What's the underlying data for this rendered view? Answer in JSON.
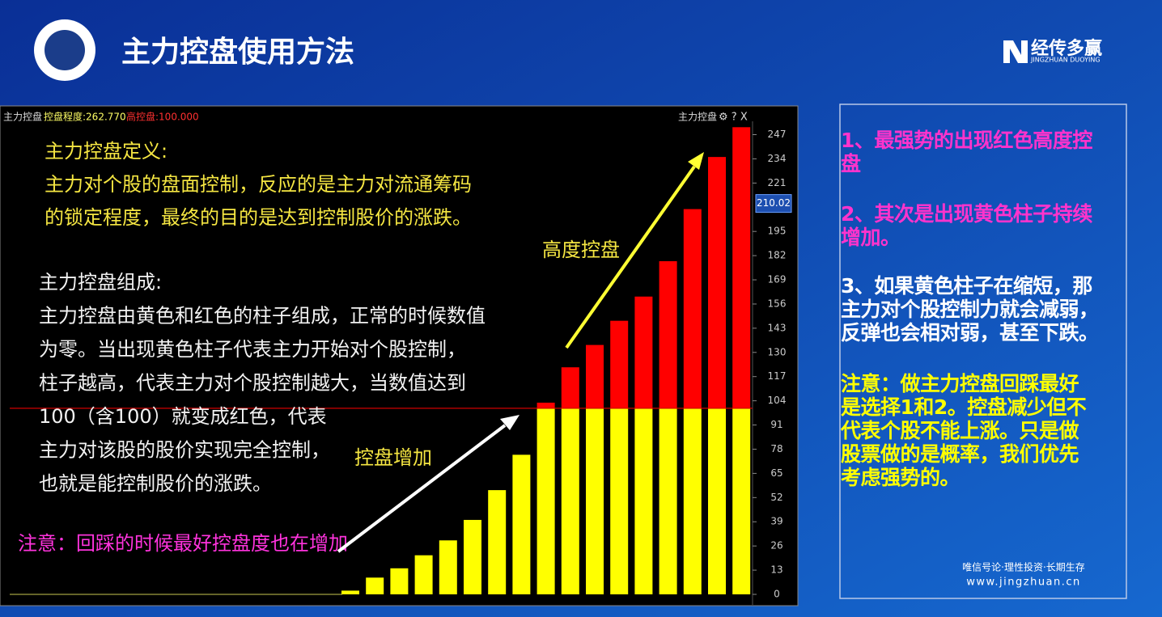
{
  "header": {
    "title": "主力控盘使用方法",
    "logo": "经传多赢",
    "logo_sub": "JINGZHUAN DUOYING"
  },
  "chart_data": {
    "type": "bar",
    "stacked": true,
    "panel_title": "主力控盘",
    "indicator_label": "控盘程度:262.770",
    "threshold_label": "高控盘:100.000",
    "toolbar_label": "主力控盘",
    "categories": [
      null,
      null,
      null,
      null,
      null,
      null,
      null,
      null,
      null,
      null,
      null,
      null,
      null,
      null,
      null,
      null,
      null
    ],
    "series": [
      {
        "color": "#ffff00",
        "values": [
          2,
          9,
          14,
          21,
          29,
          40,
          56,
          75,
          100,
          100,
          100,
          100,
          100,
          100,
          100,
          100,
          100
        ]
      },
      {
        "color": "#ff0000",
        "values": [
          0,
          0,
          0,
          0,
          0,
          0,
          0,
          0,
          3,
          22,
          34,
          47,
          60,
          79,
          107,
          135,
          151
        ]
      }
    ],
    "reference_line": 100,
    "reference_color": "#d00000",
    "current_value": 210.02,
    "current_value_label": "210.02",
    "ylim": [
      0,
      252
    ],
    "yticks": [
      0,
      13,
      26,
      39,
      52,
      65,
      78,
      91,
      104,
      117,
      130,
      143,
      156,
      169,
      182,
      195,
      221,
      234,
      247
    ],
    "annotations": {
      "definition": [
        "主力控盘定义:",
        "主力对个股的盘面控制，反应的是主力对流通筹码",
        "的锁定程度，最终的目的是达到控制股价的涨跌。"
      ],
      "composition": [
        "主力控盘组成:",
        "主力控盘由黄色和红色的柱子组成，正常的时候数值",
        "为零。当出现黄色柱子代表主力开始对个股控制，",
        "柱子越高，代表主力对个股控制越大，当数值达到",
        "100（含100）就变成红色，代表",
        "主力对该股的股价实现完全控制，",
        "也就是能控制股价的涨跌。"
      ],
      "high_control": "高度控盘",
      "increase": "控盘增加",
      "note": "注意：回踩的时候最好控盘度也在增加"
    }
  },
  "side_panel": {
    "point1": [
      "1、最强势的出现红色高度控",
      "盘"
    ],
    "point2": [
      "2、其次是出现黄色柱子持续",
      "增加。"
    ],
    "point3": [
      "3、如果黄色柱子在缩短，那",
      "主力对个股控制力就会减弱，",
      "反弹也会相对弱，甚至下跌。"
    ],
    "note": [
      "注意：做主力控盘回踩最好",
      "是选择1和2。控盘减少但不",
      "代表个股不能上涨。只是做",
      "股票做的是概率，我们优先",
      "考虑强势的。"
    ],
    "footer_slogan": "唯信号论·理性投资·长期生存",
    "footer_url": "www.jingzhuan.cn"
  }
}
